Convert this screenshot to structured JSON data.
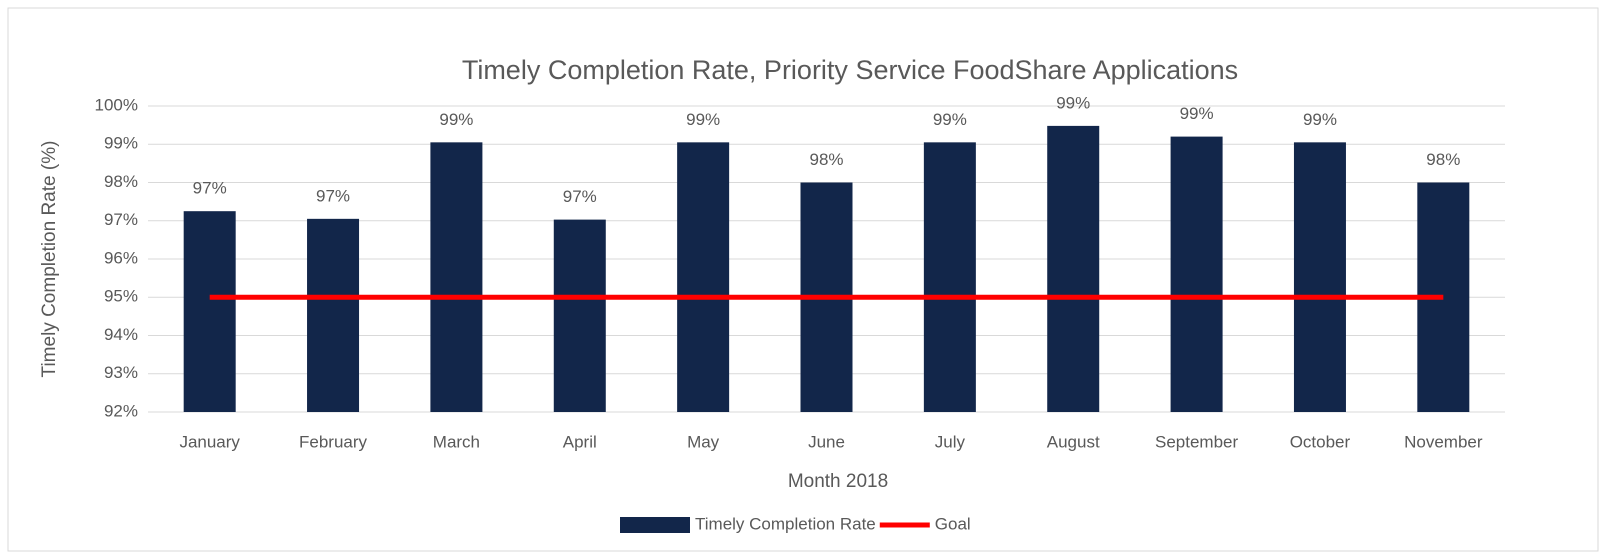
{
  "chart_data": {
    "type": "bar",
    "title": "Timely Completion Rate, Priority Service FoodShare Applications",
    "x_label": "Month 2018",
    "y_label": "Timely Completion Rate (%)",
    "categories": [
      "January",
      "February",
      "March",
      "April",
      "May",
      "June",
      "July",
      "August",
      "September",
      "October",
      "November"
    ],
    "series": [
      {
        "name": "Timely Completion Rate",
        "type": "bar",
        "color": "#12264a",
        "values": [
          97.25,
          97.05,
          99.05,
          97.03,
          99.05,
          98.0,
          99.05,
          99.48,
          99.2,
          99.05,
          98.0
        ],
        "value_labels": [
          "97%",
          "97%",
          "99%",
          "97%",
          "99%",
          "98%",
          "99%",
          "99%",
          "99%",
          "99%",
          "98%"
        ]
      },
      {
        "name": "Goal",
        "type": "line",
        "color": "#ff0000",
        "values": [
          95,
          95,
          95,
          95,
          95,
          95,
          95,
          95,
          95,
          95,
          95
        ]
      }
    ],
    "ylim": [
      92,
      100
    ],
    "yticks": [
      {
        "value": 92,
        "label": "92%"
      },
      {
        "value": 93,
        "label": "93%"
      },
      {
        "value": 94,
        "label": "94%"
      },
      {
        "value": 95,
        "label": "95%"
      },
      {
        "value": 96,
        "label": "96%"
      },
      {
        "value": 97,
        "label": "97%"
      },
      {
        "value": 98,
        "label": "98%"
      },
      {
        "value": 99,
        "label": "99%"
      },
      {
        "value": 100,
        "label": "100%"
      }
    ],
    "grid": true,
    "legend": "bottom"
  }
}
